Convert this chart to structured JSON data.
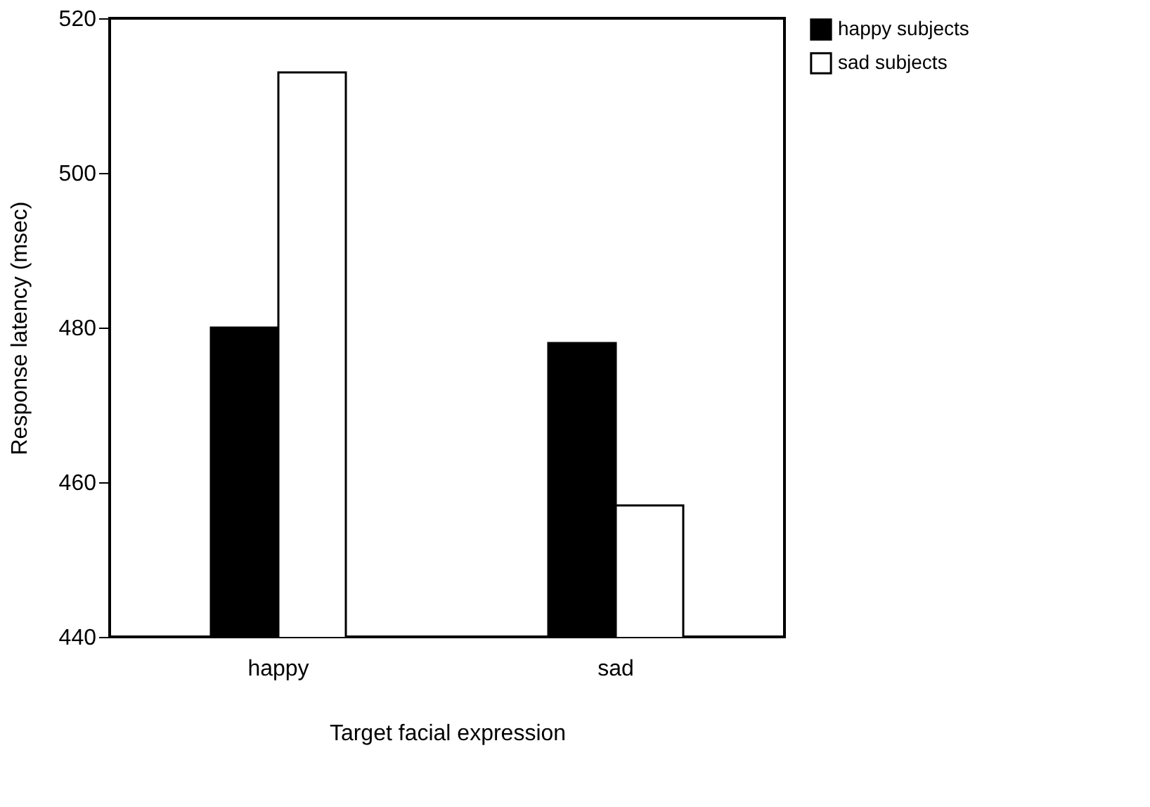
{
  "chart_data": {
    "type": "bar",
    "xlabel": "Target facial expression",
    "ylabel": "Response latency (msec)",
    "categories": [
      "happy",
      "sad"
    ],
    "series": [
      {
        "name": "happy subjects",
        "color": "#000000",
        "values": [
          480,
          478
        ]
      },
      {
        "name": "sad subjects",
        "color": "#ffffff",
        "values": [
          513,
          457
        ]
      }
    ],
    "ylim": [
      440,
      520
    ],
    "yticks": [
      440,
      460,
      480,
      500,
      520
    ],
    "grid": false,
    "legend": "top right"
  }
}
